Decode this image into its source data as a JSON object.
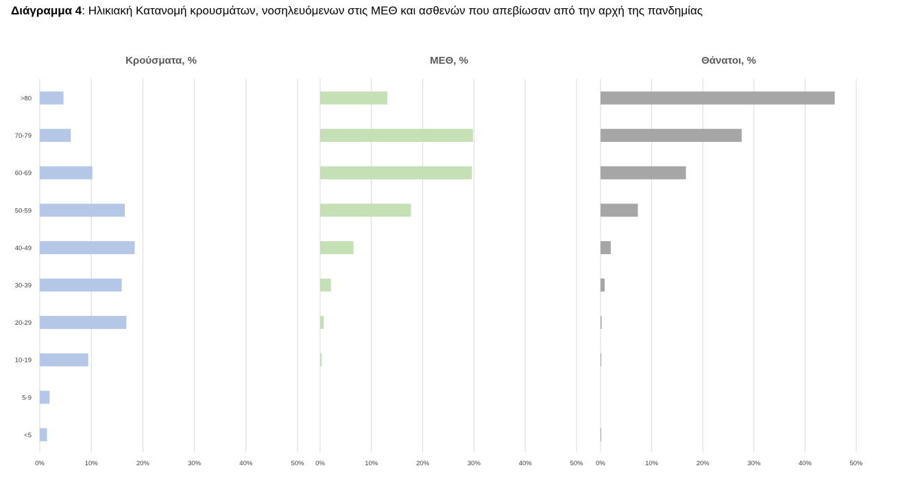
{
  "caption": {
    "label": "Διάγραμμα 4",
    "text": ": Ηλικιακή Κατανομή κρουσμάτων, νοσηλευόμενων στις ΜΕΘ και ασθενών που απεβίωσαν από την αρχή της πανδημίας"
  },
  "chart_data": [
    {
      "type": "bar",
      "orientation": "horizontal",
      "title": "Κρούσματα, %",
      "categories": [
        ">80",
        "70-79",
        "60-69",
        "50-59",
        "40-49",
        "30-39",
        "20-29",
        "10-19",
        "5-9",
        "<5"
      ],
      "values": [
        4.6,
        6.0,
        10.2,
        16.5,
        18.4,
        15.9,
        16.8,
        9.4,
        1.9,
        1.4
      ],
      "xlim": [
        0,
        50
      ],
      "ticks": [
        "0%",
        "10%",
        "20%",
        "30%",
        "40%",
        "50%"
      ],
      "color": "#b4c7e7",
      "grid": true
    },
    {
      "type": "bar",
      "orientation": "horizontal",
      "title": "ΜΕΘ, %",
      "categories": [
        ">80",
        "70-79",
        "60-69",
        "50-59",
        "40-49",
        "30-39",
        "20-29",
        "10-19",
        "5-9",
        "<5"
      ],
      "values": [
        13.1,
        29.8,
        29.6,
        17.7,
        6.5,
        2.1,
        0.7,
        0.3,
        0.0,
        0.0
      ],
      "xlim": [
        0,
        50
      ],
      "ticks": [
        "0%",
        "10%",
        "20%",
        "30%",
        "40%",
        "50%"
      ],
      "color": "#c5e0b4",
      "grid": true
    },
    {
      "type": "bar",
      "orientation": "horizontal",
      "title": "Θάνατοι, %",
      "categories": [
        ">80",
        "70-79",
        "60-69",
        "50-59",
        "40-49",
        "30-39",
        "20-29",
        "10-19",
        "5-9",
        "<5"
      ],
      "values": [
        45.8,
        27.6,
        16.7,
        7.3,
        2.0,
        0.8,
        0.2,
        0.1,
        0.0,
        0.1
      ],
      "xlim": [
        0,
        50
      ],
      "ticks": [
        "0%",
        "10%",
        "20%",
        "30%",
        "40%",
        "50%"
      ],
      "color": "#a6a6a6",
      "grid": true
    }
  ]
}
